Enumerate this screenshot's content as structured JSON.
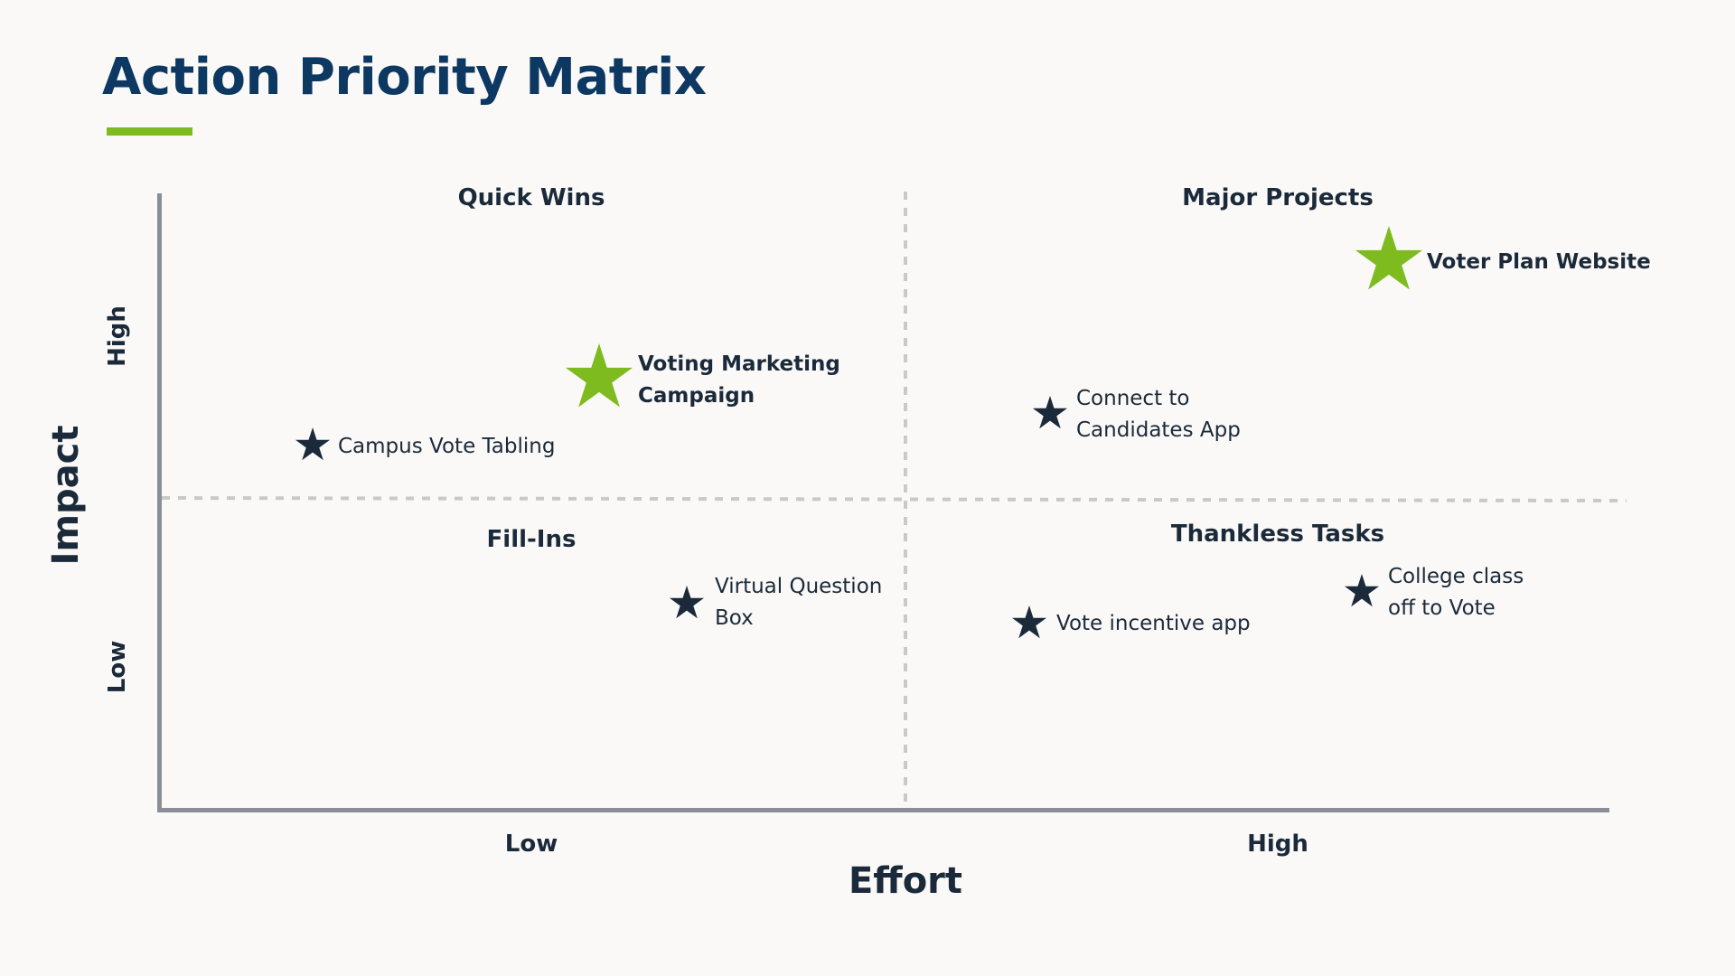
{
  "title": "Action Priority Matrix",
  "x_axis": {
    "label": "Effort",
    "ticks": [
      "Low",
      "High"
    ]
  },
  "y_axis": {
    "label": "Impact",
    "ticks": [
      "High",
      "Low"
    ]
  },
  "quadrants": {
    "quick_wins": "Quick Wins",
    "major_projects": "Major Projects",
    "fill_ins": "Fill-Ins",
    "thankless_tasks": "Thankless Tasks"
  },
  "colors": {
    "title": "#0c3862",
    "accent": "#7dbb1f",
    "star_default": "#1b2a3a",
    "axis": "#8a8f96",
    "divider": "#c9c9c9"
  },
  "items": [
    {
      "lines": [
        "Voter Plan Website"
      ],
      "highlight": true,
      "effort": "high",
      "impact": "high"
    },
    {
      "lines": [
        "Voting Marketing",
        "Campaign"
      ],
      "highlight": true,
      "effort": "low",
      "impact": "high"
    },
    {
      "lines": [
        "Campus Vote Tabling"
      ],
      "highlight": false,
      "effort": "low",
      "impact": "high"
    },
    {
      "lines": [
        "Connect to",
        "Candidates App"
      ],
      "highlight": false,
      "effort": "high",
      "impact": "high"
    },
    {
      "lines": [
        "Virtual Question",
        "Box"
      ],
      "highlight": false,
      "effort": "low",
      "impact": "low"
    },
    {
      "lines": [
        "Vote incentive app"
      ],
      "highlight": false,
      "effort": "high",
      "impact": "low"
    },
    {
      "lines": [
        "College class",
        "off to Vote"
      ],
      "highlight": false,
      "effort": "high",
      "impact": "low"
    }
  ]
}
